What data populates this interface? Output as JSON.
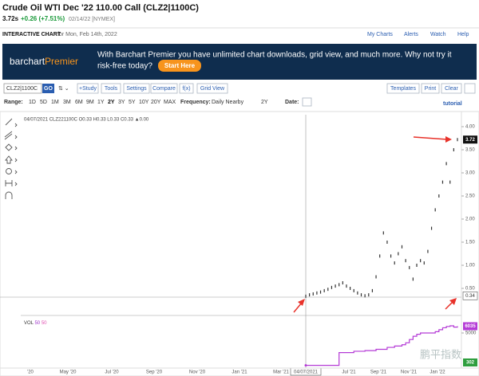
{
  "header": {
    "title": "Crude Oil WTI Dec '22 110.00 Call (CLZ2|1100C)",
    "last": "3.72s",
    "change": "+0.26 (+7.51%)",
    "date": "02/14/22 [NYMEX]",
    "section": "INTERACTIVE CHART",
    "section_date": "for Mon, Feb 14th, 2022",
    "links": [
      "My Charts",
      "Alerts",
      "Watch",
      "Help"
    ]
  },
  "banner": {
    "logo_1": "barchart",
    "logo_2": "Premier",
    "text_1": "With Barchart Premier you have unlimited chart downloads, grid view, and much more. Why not try it",
    "text_2": "risk-free today?",
    "button": "Start Here"
  },
  "toolbar": {
    "symbol": "CLZ2|1100C",
    "go": "GO",
    "buttons": [
      "+Study",
      "Tools",
      "Settings",
      "Compare",
      "f(x)",
      "Grid View"
    ],
    "right_buttons": [
      "Templates",
      "Print",
      "Clear"
    ]
  },
  "range_bar": {
    "label": "Range:",
    "ranges": [
      "1D",
      "5D",
      "1M",
      "3M",
      "6M",
      "9M",
      "1Y",
      "2Y",
      "3Y",
      "5Y",
      "10Y",
      "20Y",
      "MAX"
    ],
    "frequency_label": "Frequency:",
    "frequency": "Daily Nearby",
    "period": "2Y",
    "date_label": "Date:",
    "tutorial": "tutorial"
  },
  "chart": {
    "info": "04/07/2021 CLZ221100C O0.33 H0.33 L0.33 C0.33 ▲0.00",
    "price_yticks": [
      {
        "value": 4,
        "label": "4.00"
      },
      {
        "value": 3.5,
        "label": "3.50"
      },
      {
        "value": 3,
        "label": "3.00"
      },
      {
        "value": 2.5,
        "label": "2.50"
      },
      {
        "value": 2,
        "label": "2.00"
      },
      {
        "value": 1.5,
        "label": "1.50"
      },
      {
        "value": 1,
        "label": "1.00"
      },
      {
        "value": 0.5,
        "label": "0.50"
      }
    ],
    "last_price": 3.72,
    "crosshair_price": 0.34,
    "prices": [
      0.33,
      0.36,
      0.38,
      0.4,
      0.42,
      0.45,
      0.48,
      0.52,
      0.55,
      0.58,
      0.62,
      0.55,
      0.5,
      0.45,
      0.4,
      0.36,
      0.34,
      0.36,
      0.45,
      0.75,
      1.2,
      1.7,
      1.5,
      1.2,
      1.05,
      1.25,
      1.4,
      1.1,
      0.95,
      0.7,
      1.0,
      1.1,
      1.05,
      1.3,
      1.8,
      2.2,
      2.5,
      2.8,
      3.2,
      2.8,
      3.5,
      3.72
    ],
    "vol_label": "VOL",
    "vol_params": [
      "50",
      "50"
    ],
    "vol_yticks": [
      5000
    ],
    "open_interest": [
      50,
      50,
      50,
      50,
      50,
      50,
      50,
      50,
      50,
      2000,
      2000,
      2000,
      2000,
      2200,
      2200,
      2200,
      2300,
      2300,
      2300,
      2500,
      2500,
      2500,
      2800,
      2800,
      3000,
      3000,
      3200,
      3500,
      4000,
      4500,
      4800,
      5000,
      5000,
      5000,
      5000,
      5200,
      5500,
      5800,
      6000,
      6100,
      5900,
      6035
    ],
    "oi_tag": 6035,
    "vol_tag": 302,
    "xlabels": [
      "'20",
      "May '20",
      "Jul '20",
      "Sep '20",
      "Nov '20",
      "Jan '21",
      "Mar '21",
      "04/07/2021",
      "Jul '21",
      "Sep '21",
      "Nov '21",
      "Jan '22"
    ],
    "watermark": "鹏平指数"
  }
}
